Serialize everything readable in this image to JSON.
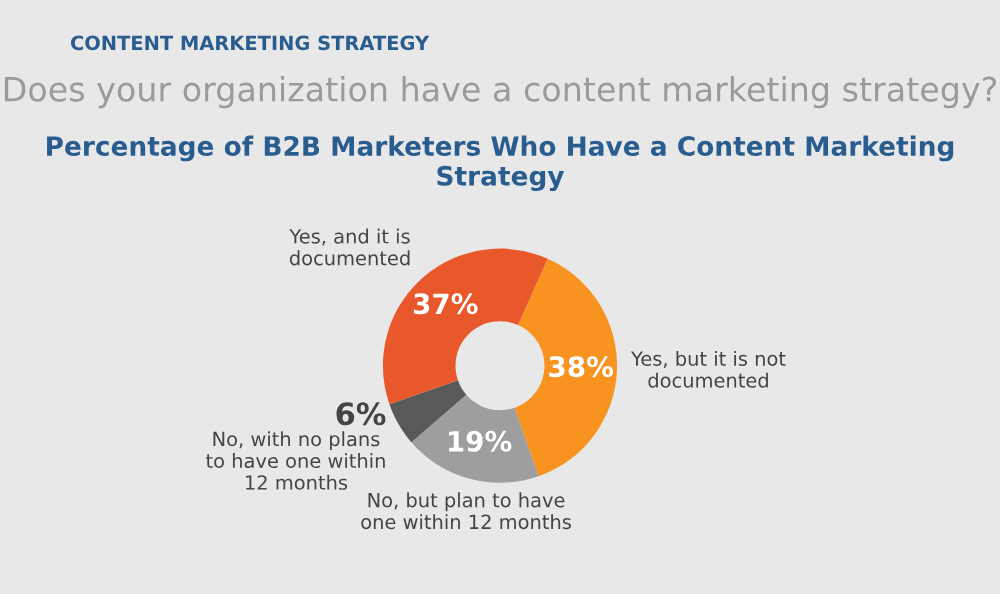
{
  "chart_data": {
    "type": "donut",
    "title": "Does your organization have a content marketing strategy?",
    "subtitle": "Percentage of B2B Marketers Who Have a Content Marketing Strategy",
    "annotations": [
      "CONTENT MARKETING STRATEGY"
    ],
    "categories": [
      "Yes, but it is not\ndocumented",
      "No, but plan to have\none within 12 months",
      "No, with no plans\nto have one within\n12 months",
      "Yes, and it is\ndocumented"
    ],
    "values": [
      38,
      19,
      6,
      37
    ],
    "value_labels": [
      "38%",
      "19%",
      "6%",
      "37%"
    ],
    "colors": [
      "#f7931e",
      "#9e9e9e",
      "#595959",
      "#e8582a"
    ],
    "legend": false
  }
}
